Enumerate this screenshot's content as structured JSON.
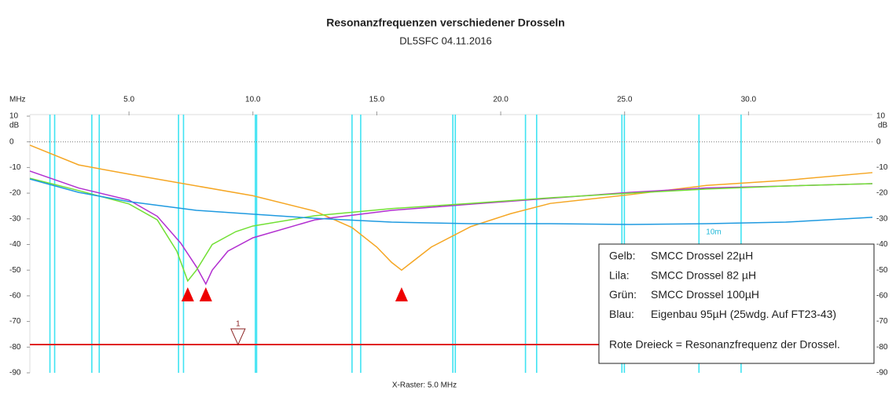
{
  "chart_data": {
    "type": "line",
    "title": "Resonanzfrequenzen verschiedener Drosseln",
    "subtitle": "DL5SFC 04.11.2016",
    "x_unit": "MHz",
    "y_unit": "dB",
    "x_footer": "X-Raster: 5.0 MHz",
    "band_label": "10m",
    "xlim": [
      1,
      35
    ],
    "ylim": [
      -90,
      10
    ],
    "xticks": [
      {
        "value": 5,
        "label": "5.0"
      },
      {
        "value": 10,
        "label": "10.0"
      },
      {
        "value": 15,
        "label": "15.0"
      },
      {
        "value": 20,
        "label": "20.0"
      },
      {
        "value": 25,
        "label": "25.0"
      },
      {
        "value": 30,
        "label": "30.0"
      }
    ],
    "yticks": [
      10,
      0,
      -10,
      -20,
      -30,
      -40,
      -50,
      -60,
      -70,
      -80,
      -90
    ],
    "band_color": "#3fe3f2",
    "bands": [
      [
        1.81,
        2.0
      ],
      [
        3.5,
        3.8
      ],
      [
        7.0,
        7.2
      ],
      [
        10.1,
        10.15
      ],
      [
        14.0,
        14.35
      ],
      [
        18.068,
        18.168
      ],
      [
        21.0,
        21.45
      ],
      [
        24.89,
        24.99
      ],
      [
        28.0,
        29.7
      ]
    ],
    "series": [
      {
        "name": "Gelb:",
        "description": "SMCC Drossel 22µH",
        "color": "#f5a623",
        "resonance": 16,
        "x": [
          1,
          2.97,
          5,
          10,
          12.5,
          14,
          15,
          15.6,
          16,
          16.4,
          17.2,
          18.8,
          20.4,
          22,
          25.2,
          28.3,
          31.5,
          35
        ],
        "values": [
          -1.3,
          -9,
          -12.6,
          -21,
          -27,
          -33.4,
          -41,
          -47,
          -50,
          -47,
          -41,
          -33,
          -28,
          -24,
          -20.6,
          -17,
          -15,
          -12
        ]
      },
      {
        "name": "Lila:",
        "description": "SMCC Drossel 82 µH",
        "color": "#b22fd0",
        "resonance": 8.1,
        "x": [
          1,
          2.97,
          5,
          6.14,
          7.09,
          7.72,
          8.1,
          8.36,
          8.99,
          10,
          12.5,
          15.6,
          18.8,
          22,
          25.2,
          28.3,
          31.5,
          35
        ],
        "values": [
          -11.4,
          -18,
          -22.7,
          -29,
          -39.5,
          -48.7,
          -55.4,
          -50,
          -42.6,
          -37.4,
          -30.4,
          -26.7,
          -24.3,
          -22,
          -19.7,
          -18,
          -17.2,
          -16.3
        ]
      },
      {
        "name": "Grün:",
        "description": "SMCC Drossel 100µH",
        "color": "#72e035",
        "resonance": 7.37,
        "x": [
          1,
          2.97,
          5,
          6.14,
          6.93,
          7.37,
          7.72,
          8.36,
          9.31,
          10,
          12.5,
          15.6,
          18.8,
          22,
          25.2,
          28.3,
          31.5,
          35
        ],
        "values": [
          -14.2,
          -19,
          -24.2,
          -30.4,
          -42.6,
          -54.2,
          -50,
          -40,
          -35,
          -32.8,
          -28.8,
          -26,
          -24,
          -21.8,
          -20,
          -18.4,
          -17.2,
          -16.3
        ]
      },
      {
        "name": "Blau:",
        "description": "Eigenbau  95µH (25wdg. Auf FT23-43)",
        "color": "#1f9ae0",
        "x": [
          1,
          2.97,
          5,
          7.72,
          10,
          12.5,
          15.6,
          18.8,
          22,
          25.2,
          28.3,
          31.5,
          35
        ],
        "values": [
          -14.5,
          -19.7,
          -23.3,
          -26.7,
          -28.2,
          -29.8,
          -31.3,
          -31.9,
          -31.9,
          -32.2,
          -31.9,
          -31.3,
          -29.4
        ]
      }
    ],
    "reference": {
      "value": -79,
      "color": "#e02020"
    },
    "marker": {
      "label": "1",
      "x": 9.4
    },
    "legend_note": "Rote Dreieck  = Resonanzfrequenz der Drossel."
  }
}
